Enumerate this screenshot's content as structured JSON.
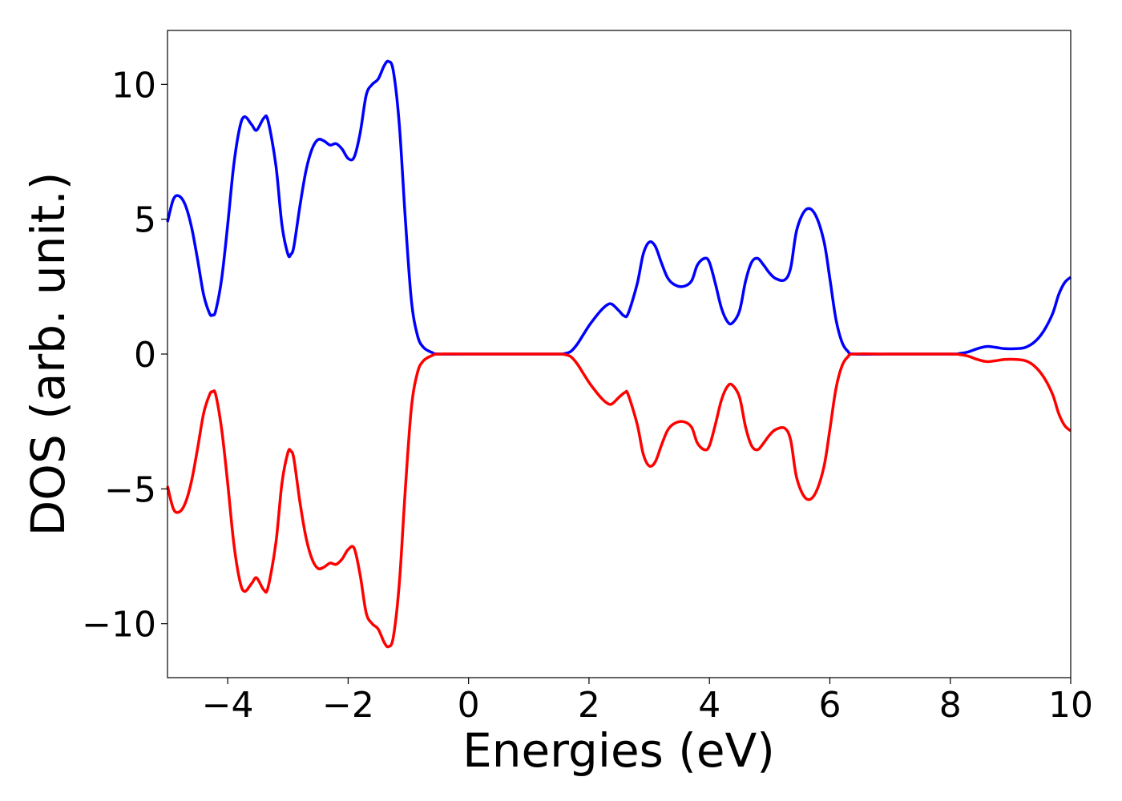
{
  "chart_data": {
    "type": "line",
    "title": "",
    "xlabel": "Energies (eV)",
    "ylabel": "DOS (arb. unit.)",
    "xlim": [
      -5,
      10
    ],
    "ylim": [
      -12,
      12
    ],
    "xticks": [
      -4,
      -2,
      0,
      2,
      4,
      6,
      8,
      10
    ],
    "xtick_labels": [
      "−4",
      "−2",
      "0",
      "2",
      "4",
      "6",
      "8",
      "10"
    ],
    "yticks": [
      10,
      5,
      0,
      -5,
      -10
    ],
    "ytick_labels": [
      "10",
      "5",
      "0",
      "−5",
      "−10"
    ],
    "grid": false,
    "legend": "none",
    "series": [
      {
        "color": "#0000ff",
        "points": [
          [
            -5.0,
            4.9
          ],
          [
            -4.9,
            5.75
          ],
          [
            -4.8,
            5.85
          ],
          [
            -4.7,
            5.5
          ],
          [
            -4.6,
            4.7
          ],
          [
            -4.5,
            3.5
          ],
          [
            -4.4,
            2.2
          ],
          [
            -4.3,
            1.5
          ],
          [
            -4.25,
            1.45
          ],
          [
            -4.2,
            1.6
          ],
          [
            -4.1,
            2.8
          ],
          [
            -4.0,
            4.8
          ],
          [
            -3.9,
            7.0
          ],
          [
            -3.8,
            8.4
          ],
          [
            -3.72,
            8.8
          ],
          [
            -3.6,
            8.5
          ],
          [
            -3.52,
            8.3
          ],
          [
            -3.4,
            8.75
          ],
          [
            -3.33,
            8.65
          ],
          [
            -3.2,
            7.0
          ],
          [
            -3.1,
            4.8
          ],
          [
            -3.0,
            3.7
          ],
          [
            -2.95,
            3.7
          ],
          [
            -2.9,
            4.0
          ],
          [
            -2.8,
            5.5
          ],
          [
            -2.7,
            6.8
          ],
          [
            -2.6,
            7.6
          ],
          [
            -2.5,
            7.95
          ],
          [
            -2.4,
            7.9
          ],
          [
            -2.3,
            7.75
          ],
          [
            -2.2,
            7.8
          ],
          [
            -2.1,
            7.6
          ],
          [
            -2.0,
            7.25
          ],
          [
            -1.9,
            7.3
          ],
          [
            -1.8,
            8.2
          ],
          [
            -1.7,
            9.6
          ],
          [
            -1.6,
            10.0
          ],
          [
            -1.5,
            10.2
          ],
          [
            -1.4,
            10.7
          ],
          [
            -1.33,
            10.85
          ],
          [
            -1.25,
            10.5
          ],
          [
            -1.15,
            8.5
          ],
          [
            -1.05,
            5.0
          ],
          [
            -0.95,
            2.0
          ],
          [
            -0.85,
            0.7
          ],
          [
            -0.75,
            0.25
          ],
          [
            -0.6,
            0.05
          ],
          [
            -0.5,
            0.0
          ],
          [
            0.0,
            0.0
          ],
          [
            1.0,
            0.0
          ],
          [
            1.5,
            0.0
          ],
          [
            1.6,
            0.02
          ],
          [
            1.7,
            0.1
          ],
          [
            1.8,
            0.35
          ],
          [
            1.9,
            0.7
          ],
          [
            2.0,
            1.05
          ],
          [
            2.1,
            1.35
          ],
          [
            2.2,
            1.62
          ],
          [
            2.3,
            1.82
          ],
          [
            2.38,
            1.85
          ],
          [
            2.5,
            1.6
          ],
          [
            2.58,
            1.42
          ],
          [
            2.65,
            1.5
          ],
          [
            2.8,
            2.6
          ],
          [
            2.9,
            3.7
          ],
          [
            3.0,
            4.15
          ],
          [
            3.1,
            4.0
          ],
          [
            3.2,
            3.4
          ],
          [
            3.3,
            2.85
          ],
          [
            3.4,
            2.6
          ],
          [
            3.55,
            2.5
          ],
          [
            3.7,
            2.7
          ],
          [
            3.8,
            3.3
          ],
          [
            3.92,
            3.55
          ],
          [
            4.0,
            3.4
          ],
          [
            4.1,
            2.6
          ],
          [
            4.2,
            1.7
          ],
          [
            4.3,
            1.2
          ],
          [
            4.38,
            1.15
          ],
          [
            4.5,
            1.6
          ],
          [
            4.6,
            2.7
          ],
          [
            4.7,
            3.4
          ],
          [
            4.8,
            3.55
          ],
          [
            4.9,
            3.3
          ],
          [
            5.0,
            3.0
          ],
          [
            5.1,
            2.8
          ],
          [
            5.25,
            2.75
          ],
          [
            5.35,
            3.2
          ],
          [
            5.45,
            4.6
          ],
          [
            5.6,
            5.35
          ],
          [
            5.75,
            5.2
          ],
          [
            5.9,
            4.2
          ],
          [
            6.0,
            2.8
          ],
          [
            6.1,
            1.3
          ],
          [
            6.2,
            0.45
          ],
          [
            6.3,
            0.1
          ],
          [
            6.4,
            0.0
          ],
          [
            7.0,
            0.0
          ],
          [
            8.0,
            0.0
          ],
          [
            8.15,
            0.02
          ],
          [
            8.3,
            0.08
          ],
          [
            8.45,
            0.2
          ],
          [
            8.6,
            0.28
          ],
          [
            8.75,
            0.25
          ],
          [
            8.9,
            0.2
          ],
          [
            9.1,
            0.2
          ],
          [
            9.25,
            0.25
          ],
          [
            9.4,
            0.45
          ],
          [
            9.55,
            0.85
          ],
          [
            9.7,
            1.5
          ],
          [
            9.8,
            2.2
          ],
          [
            9.9,
            2.65
          ],
          [
            10.0,
            2.85
          ]
        ]
      },
      {
        "color": "#ff0000",
        "points": [
          [
            -5.0,
            -4.9
          ],
          [
            -4.9,
            -5.75
          ],
          [
            -4.8,
            -5.85
          ],
          [
            -4.7,
            -5.5
          ],
          [
            -4.6,
            -4.7
          ],
          [
            -4.5,
            -3.5
          ],
          [
            -4.4,
            -2.2
          ],
          [
            -4.3,
            -1.5
          ],
          [
            -4.25,
            -1.4
          ],
          [
            -4.2,
            -1.5
          ],
          [
            -4.1,
            -2.8
          ],
          [
            -4.0,
            -4.8
          ],
          [
            -3.9,
            -7.0
          ],
          [
            -3.8,
            -8.4
          ],
          [
            -3.72,
            -8.8
          ],
          [
            -3.6,
            -8.5
          ],
          [
            -3.52,
            -8.3
          ],
          [
            -3.4,
            -8.75
          ],
          [
            -3.33,
            -8.65
          ],
          [
            -3.2,
            -7.0
          ],
          [
            -3.1,
            -4.8
          ],
          [
            -3.0,
            -3.65
          ],
          [
            -2.95,
            -3.6
          ],
          [
            -2.9,
            -3.9
          ],
          [
            -2.8,
            -5.5
          ],
          [
            -2.7,
            -6.8
          ],
          [
            -2.6,
            -7.6
          ],
          [
            -2.5,
            -7.95
          ],
          [
            -2.4,
            -7.9
          ],
          [
            -2.3,
            -7.75
          ],
          [
            -2.2,
            -7.8
          ],
          [
            -2.1,
            -7.6
          ],
          [
            -2.0,
            -7.25
          ],
          [
            -1.9,
            -7.2
          ],
          [
            -1.8,
            -8.2
          ],
          [
            -1.7,
            -9.6
          ],
          [
            -1.6,
            -10.0
          ],
          [
            -1.5,
            -10.2
          ],
          [
            -1.4,
            -10.7
          ],
          [
            -1.33,
            -10.85
          ],
          [
            -1.25,
            -10.5
          ],
          [
            -1.15,
            -8.5
          ],
          [
            -1.05,
            -5.0
          ],
          [
            -0.95,
            -2.0
          ],
          [
            -0.85,
            -0.7
          ],
          [
            -0.75,
            -0.25
          ],
          [
            -0.6,
            -0.05
          ],
          [
            -0.5,
            0.0
          ],
          [
            0.0,
            0.0
          ],
          [
            1.0,
            0.0
          ],
          [
            1.5,
            0.0
          ],
          [
            1.6,
            -0.02
          ],
          [
            1.7,
            -0.1
          ],
          [
            1.8,
            -0.35
          ],
          [
            1.9,
            -0.7
          ],
          [
            2.0,
            -1.05
          ],
          [
            2.1,
            -1.35
          ],
          [
            2.2,
            -1.62
          ],
          [
            2.3,
            -1.82
          ],
          [
            2.38,
            -1.85
          ],
          [
            2.5,
            -1.6
          ],
          [
            2.6,
            -1.42
          ],
          [
            2.65,
            -1.5
          ],
          [
            2.8,
            -2.6
          ],
          [
            2.9,
            -3.7
          ],
          [
            3.0,
            -4.15
          ],
          [
            3.1,
            -4.0
          ],
          [
            3.2,
            -3.4
          ],
          [
            3.3,
            -2.85
          ],
          [
            3.4,
            -2.6
          ],
          [
            3.55,
            -2.5
          ],
          [
            3.7,
            -2.7
          ],
          [
            3.8,
            -3.3
          ],
          [
            3.92,
            -3.55
          ],
          [
            4.0,
            -3.4
          ],
          [
            4.1,
            -2.6
          ],
          [
            4.2,
            -1.7
          ],
          [
            4.3,
            -1.2
          ],
          [
            4.38,
            -1.15
          ],
          [
            4.5,
            -1.6
          ],
          [
            4.6,
            -2.7
          ],
          [
            4.7,
            -3.4
          ],
          [
            4.8,
            -3.55
          ],
          [
            4.9,
            -3.3
          ],
          [
            5.0,
            -3.0
          ],
          [
            5.1,
            -2.8
          ],
          [
            5.25,
            -2.75
          ],
          [
            5.35,
            -3.2
          ],
          [
            5.45,
            -4.6
          ],
          [
            5.6,
            -5.35
          ],
          [
            5.75,
            -5.2
          ],
          [
            5.9,
            -4.2
          ],
          [
            6.0,
            -2.8
          ],
          [
            6.1,
            -1.3
          ],
          [
            6.2,
            -0.45
          ],
          [
            6.3,
            -0.1
          ],
          [
            6.4,
            0.0
          ],
          [
            7.0,
            0.0
          ],
          [
            8.0,
            0.0
          ],
          [
            8.15,
            -0.02
          ],
          [
            8.3,
            -0.08
          ],
          [
            8.45,
            -0.2
          ],
          [
            8.6,
            -0.28
          ],
          [
            8.75,
            -0.25
          ],
          [
            8.9,
            -0.2
          ],
          [
            9.1,
            -0.2
          ],
          [
            9.25,
            -0.25
          ],
          [
            9.4,
            -0.45
          ],
          [
            9.55,
            -0.85
          ],
          [
            9.7,
            -1.5
          ],
          [
            9.8,
            -2.2
          ],
          [
            9.9,
            -2.65
          ],
          [
            10.0,
            -2.85
          ]
        ]
      }
    ]
  }
}
